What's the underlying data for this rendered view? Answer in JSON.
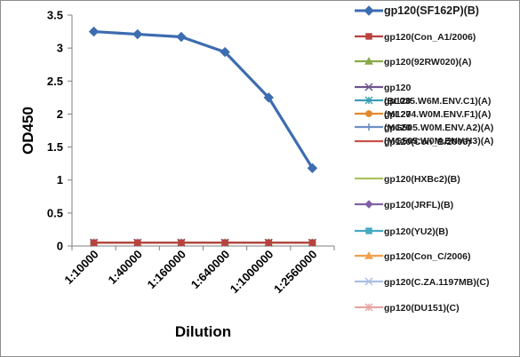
{
  "chart_data": {
    "type": "line",
    "title": "",
    "xlabel": "Dilution",
    "ylabel": "OD450",
    "categories": [
      "1:10000",
      "1:40000",
      "1:160000",
      "1:640000",
      "1:1000000",
      "1:2560000"
    ],
    "ylim": [
      0,
      3.5
    ],
    "yticks": [
      0,
      0.5,
      1,
      1.5,
      2,
      2.5,
      3,
      3.5
    ],
    "yticks_labels": [
      "0",
      "0.5",
      "1",
      "1.5",
      "2",
      "2.5",
      "3",
      "3.5"
    ],
    "grid": false,
    "legend_placement": "right",
    "series": [
      {
        "name": "gp120(SF162P)(B)",
        "name_lines": [
          "gp120(SF162P)(B)"
        ],
        "color": "#3d6cb0",
        "marker": "diamond",
        "values": [
          3.25,
          3.21,
          3.17,
          2.94,
          2.25,
          1.18
        ]
      },
      {
        "name": "gp120(Con_A1/2006)",
        "name_lines": [
          "gp120(Con_A1/2006)"
        ],
        "color": "#b8423f",
        "marker": "square",
        "values": [
          0.05,
          0.05,
          0.05,
          0.05,
          0.05,
          0.05
        ]
      },
      {
        "name": "gp120(92RW020)(A)",
        "name_lines": [
          "gp120(92RW020)(A)"
        ],
        "color": "#8aa84a",
        "marker": "triangle",
        "values": [
          0.05,
          0.05,
          0.05,
          0.05,
          0.05,
          0.05
        ]
      },
      {
        "name": "gp120 (BL035.W6M.ENV.C1)(A)",
        "name_lines": [
          "gp120",
          "(BL035.W6M.ENV.C1)(A)"
        ],
        "color": "#6e548d",
        "marker": "x",
        "values": [
          0.05,
          0.05,
          0.05,
          0.05,
          0.05,
          0.05
        ]
      },
      {
        "name": "gp120 (ML274.W0M.ENV.F1)(A)",
        "name_lines": [
          "gp120",
          "(ML274.W0M.ENV.F1)(A)"
        ],
        "color": "#3a9eb3",
        "marker": "star",
        "values": [
          0.05,
          0.05,
          0.05,
          0.05,
          0.05,
          0.05
        ]
      },
      {
        "name": "gp120 (MG505.W0M.ENV.A2)(A)",
        "name_lines": [
          "gp120",
          "(MG505.W0M.ENV.A2)(A)"
        ],
        "color": "#e08a2e",
        "marker": "circle",
        "values": [
          0.05,
          0.05,
          0.05,
          0.05,
          0.05,
          0.05
        ]
      },
      {
        "name": "gp120 (MG505.W0M.ENV.H3)(A)",
        "name_lines": [
          "gp120",
          "(MG505.W0M.ENV.H3)(A)"
        ],
        "color": "#6f8fc8",
        "marker": "plus",
        "values": [
          0.05,
          0.05,
          0.05,
          0.05,
          0.05,
          0.05
        ]
      },
      {
        "name": "gp120(Con_B/2006)",
        "name_lines": [
          "gp120(Con_B/2006)"
        ],
        "color": "#c8504a",
        "marker": "none",
        "values": [
          0.05,
          0.05,
          0.05,
          0.05,
          0.05,
          0.05
        ]
      },
      {
        "name": "gp120(HXBc2)(B)",
        "name_lines": [
          "gp120(HXBc2)(B)"
        ],
        "color": "#a9c45c",
        "marker": "none",
        "values": [
          0.05,
          0.05,
          0.05,
          0.05,
          0.05,
          0.05
        ]
      },
      {
        "name": "gp120(JRFL)(B)",
        "name_lines": [
          "gp120(JRFL)(B)"
        ],
        "color": "#7f62a3",
        "marker": "diamond",
        "values": [
          0.05,
          0.05,
          0.05,
          0.05,
          0.05,
          0.05
        ]
      },
      {
        "name": "gp120(YU2)(B)",
        "name_lines": [
          "gp120(YU2)(B)"
        ],
        "color": "#44aac2",
        "marker": "square",
        "values": [
          0.05,
          0.05,
          0.05,
          0.05,
          0.05,
          0.05
        ]
      },
      {
        "name": "gp120(Con_C/2006)",
        "name_lines": [
          "gp120(Con_C/2006)"
        ],
        "color": "#f4a04a",
        "marker": "triangle",
        "values": [
          0.05,
          0.05,
          0.05,
          0.05,
          0.05,
          0.05
        ]
      },
      {
        "name": "gp120(C.ZA.1197MB)(C)",
        "name_lines": [
          "gp120(C.ZA.1197MB)(C)"
        ],
        "color": "#a9bfe3",
        "marker": "x",
        "values": [
          0.05,
          0.05,
          0.05,
          0.05,
          0.05,
          0.05
        ]
      },
      {
        "name": "gp120(DU151)(C)",
        "name_lines": [
          "gp120(DU151)(C)"
        ],
        "color": "#e5a6a4",
        "marker": "star",
        "values": [
          0.05,
          0.05,
          0.05,
          0.05,
          0.05,
          0.05
        ]
      }
    ]
  }
}
